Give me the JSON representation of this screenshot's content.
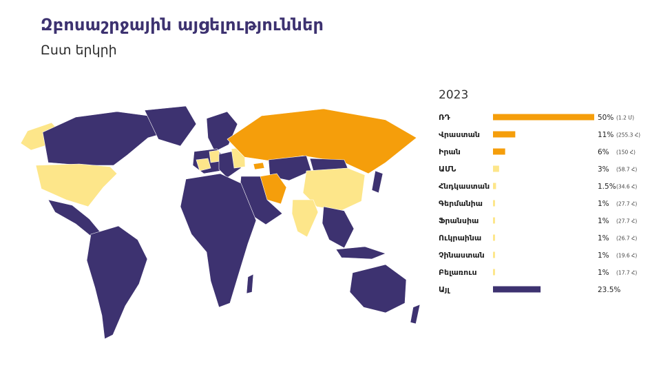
{
  "header": {
    "title": "Զբոսաշրջային այցելություններ",
    "subtitle": "Ըստ երկրի"
  },
  "colors": {
    "title": "#3d3270",
    "high": "#f59e0b",
    "low": "#fde68a",
    "other": "#3d3270",
    "ocean": "#ffffff"
  },
  "map": {
    "legend_note": ""
  },
  "chart_data": {
    "type": "bar",
    "orientation": "horizontal",
    "title": "2023",
    "xlim": [
      0,
      50
    ],
    "categories": [
      "ՌԴ",
      "Վրաստան",
      "Իրան",
      "ԱՄՆ",
      "Հնդկաստան",
      "Գերմանիա",
      "Ֆրանսիա",
      "Ուկրաինա",
      "Չինաստան",
      "Բելառուս",
      "Այլ"
    ],
    "values": [
      50,
      11,
      6,
      3,
      1.5,
      1,
      1,
      1,
      1,
      1,
      23.5
    ],
    "value_labels": [
      "50%",
      "11%",
      "6%",
      "3%",
      "1.5%",
      "1%",
      "1%",
      "1%",
      "1%",
      "1%",
      "23.5%"
    ],
    "count_labels": [
      "(1.2 Մ)",
      "(255.3 Հ)",
      "(150 Հ)",
      "(58.7 Հ)",
      "(34.6 Հ)",
      "(27.7 Հ)",
      "(27.7 Հ)",
      "(26.7 Հ)",
      "(19.6 Հ)",
      "(17.7 Հ)",
      ""
    ],
    "bar_colors": [
      "#f59e0b",
      "#f59e0b",
      "#f59e0b",
      "#fde68a",
      "#fde68a",
      "#fde68a",
      "#fde68a",
      "#fde68a",
      "#fde68a",
      "#fde68a",
      "#3d3270"
    ]
  }
}
